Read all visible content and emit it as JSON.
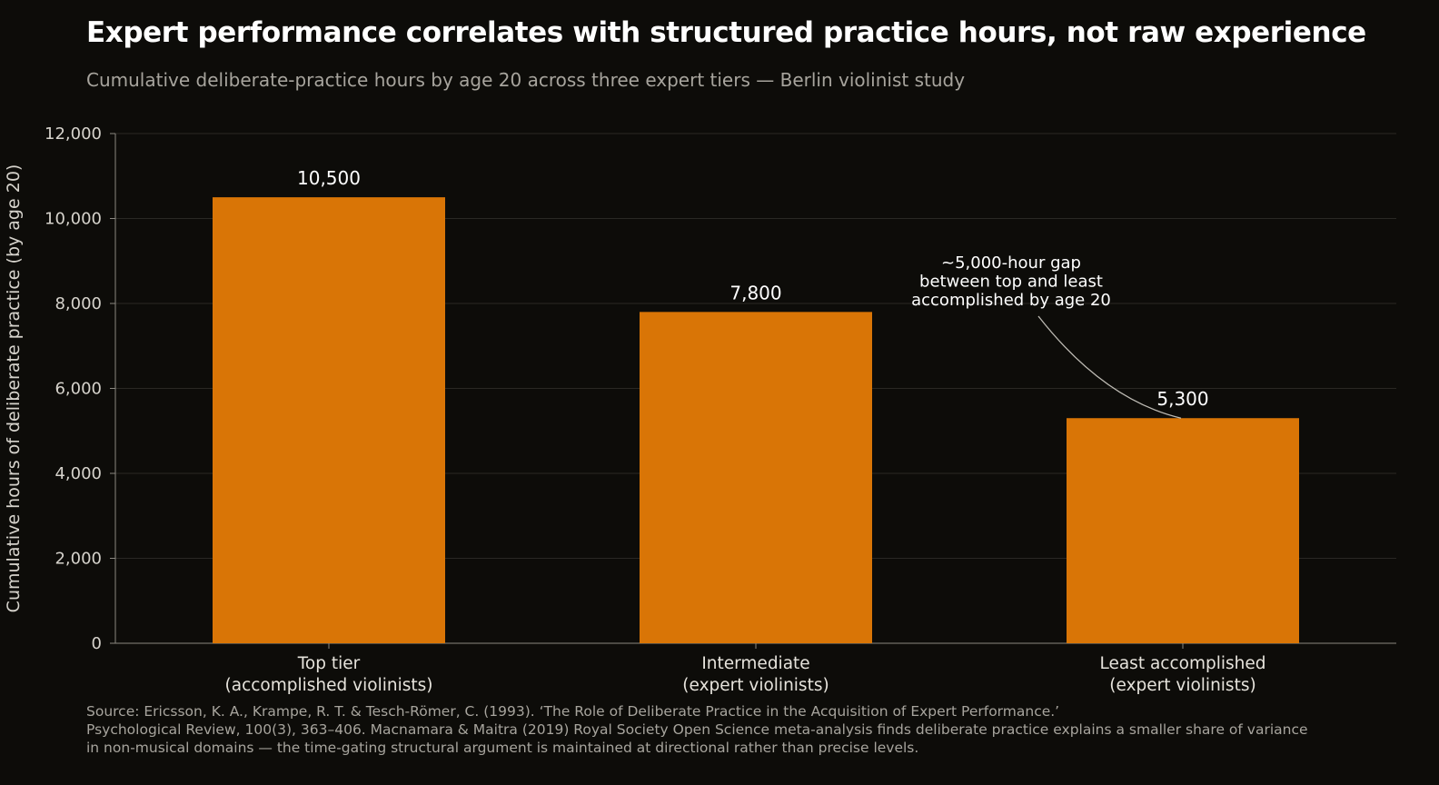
{
  "chart_data": {
    "type": "bar",
    "title": "Expert performance correlates with structured practice hours, not raw experience",
    "subtitle": "Cumulative deliberate-practice hours by age 20 across three expert tiers — Berlin violinist study",
    "ylabel": "Cumulative hours of deliberate practice (by age 20)",
    "xlabel": "",
    "ylim": [
      0,
      12000
    ],
    "yticks": [
      0,
      2000,
      4000,
      6000,
      8000,
      10000,
      12000
    ],
    "ytick_labels": [
      "0",
      "2,000",
      "4,000",
      "6,000",
      "8,000",
      "10,000",
      "12,000"
    ],
    "categories": [
      [
        "Top tier",
        "(accomplished violinists)"
      ],
      [
        "Intermediate",
        "(expert violinists)"
      ],
      [
        "Least accomplished",
        "(expert violinists)"
      ]
    ],
    "values": [
      10500,
      7800,
      5300
    ],
    "value_labels": [
      "10,500",
      "7,800",
      "5,300"
    ],
    "grid": true,
    "bar_color": "#d97506",
    "annotation": {
      "lines": [
        "~5,000-hour gap",
        "between top and least",
        "accomplished by age 20"
      ],
      "target_category": 2
    }
  },
  "source": {
    "lines": [
      "Source: Ericsson, K. A., Krampe, R. T. & Tesch-Römer, C. (1993). ‘The Role of Deliberate Practice in the Acquisition of Expert Performance.’",
      "Psychological Review, 100(3), 363–406. Macnamara & Maitra (2019) Royal Society Open Science meta-analysis finds deliberate practice explains a smaller share of variance",
      "in non-musical domains — the time-gating structural argument is maintained at directional rather than precise levels."
    ]
  }
}
